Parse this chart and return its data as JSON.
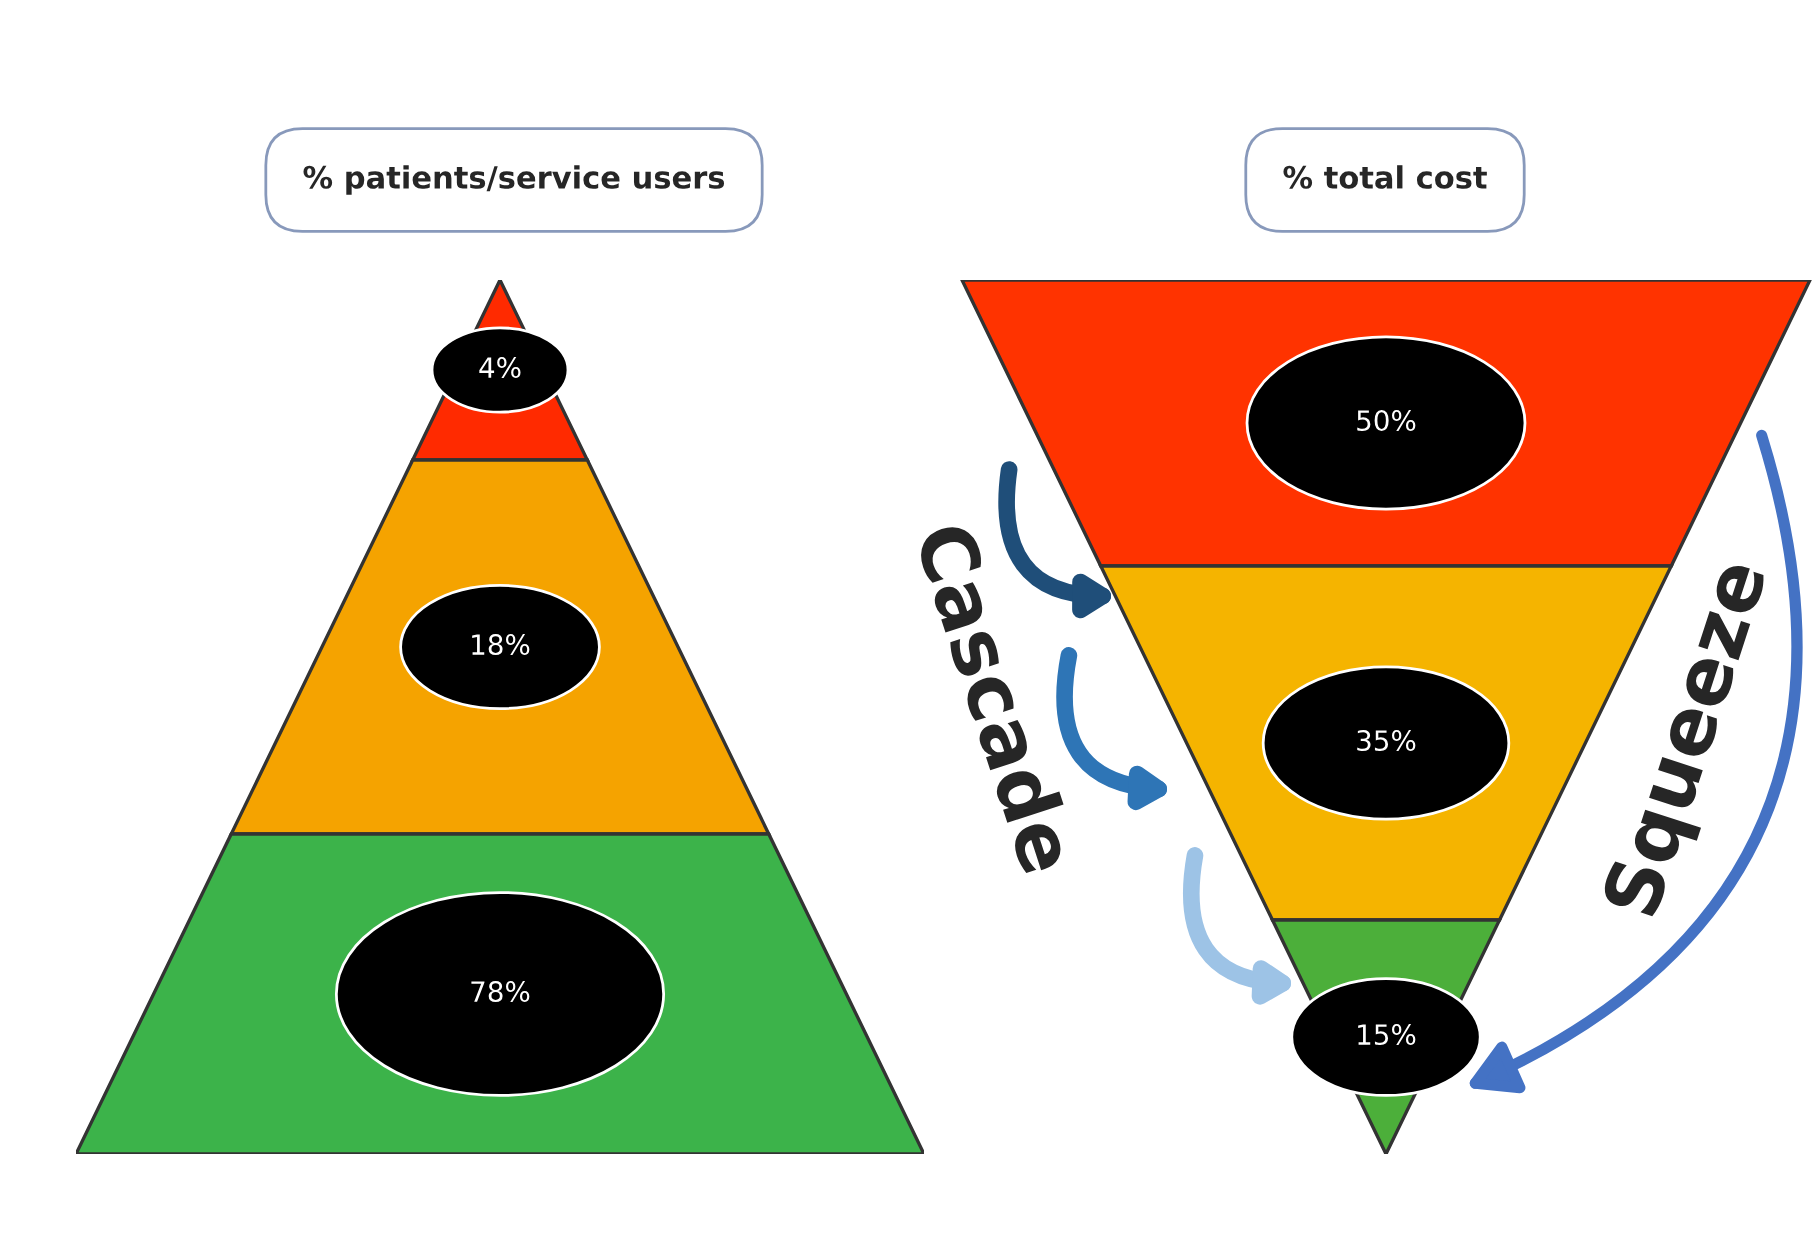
{
  "chart_data": [
    {
      "type": "other",
      "title": "% patients/service users",
      "categories": [
        null,
        null,
        null
      ],
      "values": [
        4,
        18,
        78
      ],
      "value_labels": [
        "4%",
        "18%",
        "78%"
      ],
      "colors": [
        "#ff2a00",
        "#f5a300",
        "#3cb34a"
      ]
    },
    {
      "type": "other",
      "title": "% total cost",
      "categories": [
        null,
        null,
        null
      ],
      "values": [
        50,
        35,
        15
      ],
      "value_labels": [
        "50%",
        "35%",
        "15%"
      ],
      "colors": [
        "#ff3300",
        "#f5b400",
        "#4caf3a"
      ],
      "annotations": [
        "Cascade",
        "Squeeze"
      ]
    }
  ]
}
